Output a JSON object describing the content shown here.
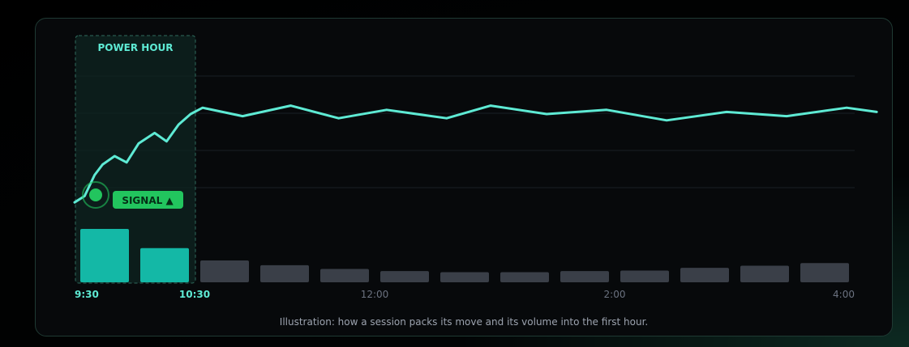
{
  "chart_data": {
    "type": "line",
    "highlight": {
      "label": "POWER HOUR",
      "from": "9:30",
      "to": "10:30"
    },
    "signal": {
      "label": "SIGNAL ▲"
    },
    "x_ticks": [
      "9:30",
      "10:30",
      "12:00",
      "2:00",
      "4:00"
    ],
    "price": [
      [
        0,
        38
      ],
      [
        5,
        41
      ],
      [
        10,
        51
      ],
      [
        14,
        56
      ],
      [
        20,
        60
      ],
      [
        26,
        57
      ],
      [
        32,
        66
      ],
      [
        40,
        71
      ],
      [
        46,
        67
      ],
      [
        52,
        75
      ],
      [
        58,
        80
      ],
      [
        64,
        83
      ],
      [
        84,
        79
      ],
      [
        108,
        84
      ],
      [
        132,
        78
      ],
      [
        156,
        82
      ],
      [
        186,
        78
      ],
      [
        208,
        84
      ],
      [
        236,
        80
      ],
      [
        266,
        82
      ],
      [
        296,
        77
      ],
      [
        326,
        81
      ],
      [
        356,
        79
      ],
      [
        386,
        83
      ],
      [
        401,
        81
      ]
    ],
    "volume_buckets": [
      {
        "start": 0,
        "value": 100,
        "in_window": true
      },
      {
        "start": 30,
        "value": 64,
        "in_window": true
      },
      {
        "start": 60,
        "value": 41,
        "in_window": false
      },
      {
        "start": 90,
        "value": 32,
        "in_window": false
      },
      {
        "start": 120,
        "value": 25,
        "in_window": false
      },
      {
        "start": 150,
        "value": 21,
        "in_window": false
      },
      {
        "start": 180,
        "value": 19,
        "in_window": false
      },
      {
        "start": 210,
        "value": 19,
        "in_window": false
      },
      {
        "start": 240,
        "value": 21,
        "in_window": false
      },
      {
        "start": 270,
        "value": 22,
        "in_window": false
      },
      {
        "start": 300,
        "value": 27,
        "in_window": false
      },
      {
        "start": 330,
        "value": 31,
        "in_window": false
      },
      {
        "start": 360,
        "value": 36,
        "in_window": false
      }
    ],
    "grid": true
  },
  "caption": "Illustration: how a session packs its move and its volume into the first hour.",
  "colors": {
    "line": "#5eead4",
    "volume_in_window": "#14b8a6",
    "volume_other": "#3a3f48",
    "signal": "#22c55e",
    "tick_active": "#5eead4",
    "tick": "#6b7280"
  }
}
